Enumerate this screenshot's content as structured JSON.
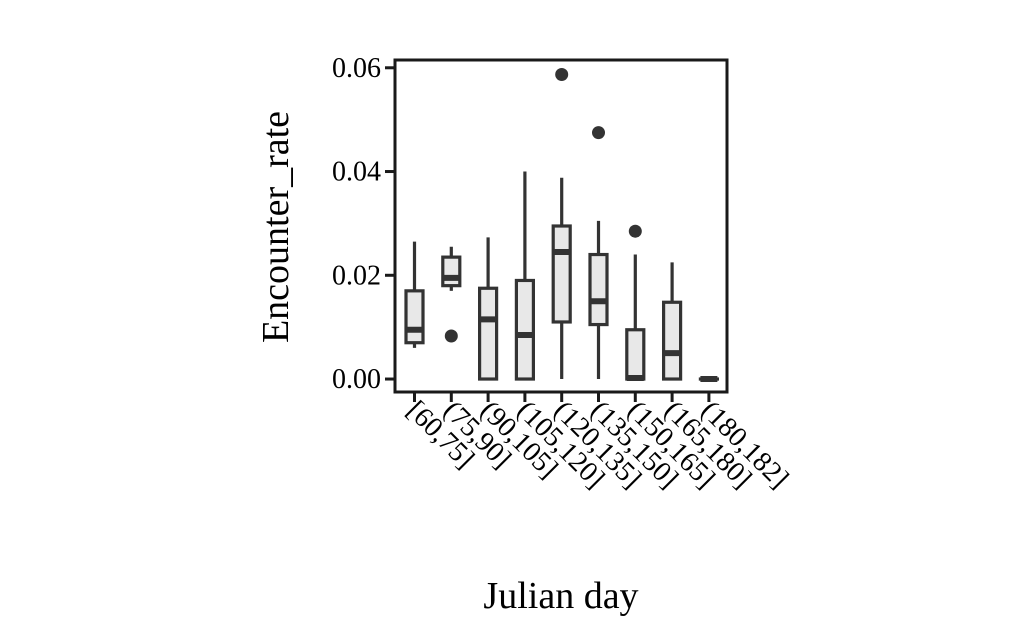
{
  "chart_data": {
    "type": "box",
    "title": "",
    "xlabel": "Julian day",
    "ylabel": "Encounter_rate",
    "ylim": [
      -0.0025,
      0.0615
    ],
    "yticks": [
      "0.00",
      "0.02",
      "0.04",
      "0.06"
    ],
    "ytick_values": [
      0,
      0.02,
      0.04,
      0.06
    ],
    "grid": false,
    "categories": [
      "[60,75]",
      "(75,90]",
      "(90,105]",
      "(105,120]",
      "(120,135]",
      "(135,150]",
      "(150,165]",
      "(165,180]",
      "(180,182]"
    ],
    "boxes": [
      {
        "min": 0.006,
        "q1": 0.007,
        "median": 0.0095,
        "q3": 0.017,
        "max": 0.0265,
        "outliers": []
      },
      {
        "min": 0.017,
        "q1": 0.018,
        "median": 0.0195,
        "q3": 0.0235,
        "max": 0.0255,
        "outliers": [
          0.0083
        ]
      },
      {
        "min": 0.0,
        "q1": 0.0,
        "median": 0.0115,
        "q3": 0.0175,
        "max": 0.0273,
        "outliers": []
      },
      {
        "min": 0.0,
        "q1": 0.0,
        "median": 0.0085,
        "q3": 0.019,
        "max": 0.04,
        "outliers": []
      },
      {
        "min": 0.0,
        "q1": 0.011,
        "median": 0.0245,
        "q3": 0.0295,
        "max": 0.0388,
        "outliers": [
          0.0587
        ]
      },
      {
        "min": 0.0,
        "q1": 0.0105,
        "median": 0.015,
        "q3": 0.024,
        "max": 0.0305,
        "outliers": [
          0.0475
        ]
      },
      {
        "min": 0.0,
        "q1": 0.0,
        "median": 0.0002,
        "q3": 0.0095,
        "max": 0.024,
        "outliers": [
          0.0285
        ]
      },
      {
        "min": 0.0,
        "q1": 0.0,
        "median": 0.005,
        "q3": 0.0148,
        "max": 0.0225,
        "outliers": []
      },
      {
        "min": 0.0,
        "q1": 0.0,
        "median": 0.0,
        "q3": 0.0,
        "max": 0.0,
        "outliers": []
      }
    ],
    "colors": {
      "box_fill": "#e8e8e8",
      "stroke": "#333333",
      "outlier": "#333333",
      "axis": "#1a1a1a"
    }
  }
}
